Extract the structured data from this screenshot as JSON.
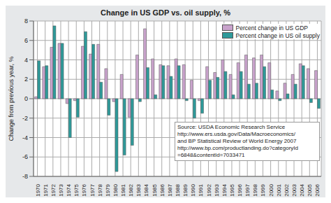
{
  "chart_data": {
    "type": "bar",
    "title": "Change in US GDP vs. oil supply, %",
    "y_label": "Change from previous year, %",
    "annotation": [
      "Source: USDA Economic Research Service",
      "http://www.ers.usda.gov/Data/Macroeconomics/",
      "and BP Statistical Review of World Energy 2007",
      "http://www.bp.com/productlanding.do?categoryId",
      "=6848&contentId=7033471"
    ],
    "categories": [
      "1970",
      "1971",
      "1972",
      "1973",
      "1974",
      "1975",
      "1976",
      "1977",
      "1978",
      "1979",
      "1980",
      "1981",
      "1982",
      "1983",
      "1984",
      "1985",
      "1986",
      "1987",
      "1988",
      "1989",
      "1990",
      "1991",
      "1992",
      "1993",
      "1994",
      "1995",
      "1996",
      "1997",
      "1998",
      "1999",
      "2000",
      "2001",
      "2002",
      "2003",
      "2004",
      "2005",
      "2006"
    ],
    "series": [
      {
        "name": "Percent change in US GDP",
        "color": "#c9a3cc",
        "values": [
          0.2,
          3.3,
          5.3,
          5.7,
          -0.5,
          -0.2,
          5.4,
          4.6,
          5.6,
          3.1,
          -0.3,
          2.5,
          -1.9,
          4.5,
          7.2,
          4.1,
          3.5,
          3.4,
          4.1,
          3.5,
          1.9,
          -0.2,
          3.3,
          2.7,
          4.0,
          2.5,
          3.7,
          4.5,
          4.2,
          4.5,
          3.7,
          0.8,
          1.6,
          2.5,
          3.6,
          3.1,
          2.9
        ]
      },
      {
        "name": "Percent change in US oil supply",
        "color": "#2e9a9a",
        "values": [
          3.9,
          3.4,
          7.5,
          5.7,
          -4.0,
          -1.9,
          6.9,
          5.6,
          1.7,
          -1.7,
          -7.5,
          -5.8,
          -4.8,
          -0.3,
          3.2,
          0.4,
          3.4,
          2.3,
          3.4,
          -0.2,
          -2.0,
          -1.5,
          1.9,
          2.2,
          2.8,
          0.4,
          2.8,
          1.5,
          1.6,
          3.3,
          0.9,
          -0.2,
          0.5,
          1.5,
          3.4,
          -0.4,
          -1.0
        ]
      }
    ],
    "ylim": [
      -8,
      8
    ],
    "yticks": [
      -8,
      -6,
      -4,
      -2,
      0,
      2,
      4,
      6,
      8
    ],
    "grid": true,
    "legend": "top-right"
  }
}
